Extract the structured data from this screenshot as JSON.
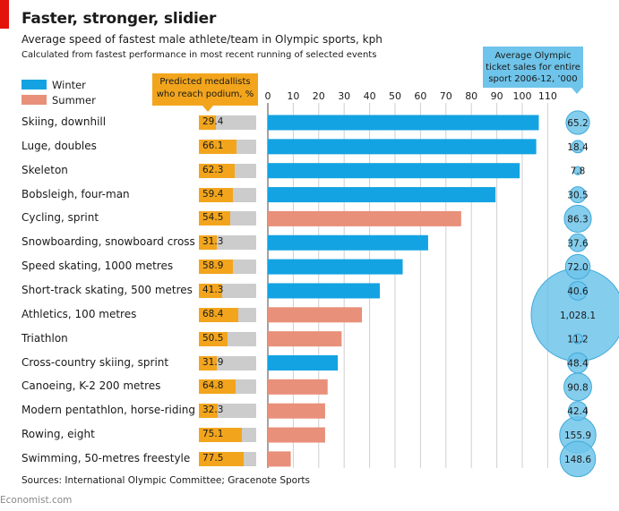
{
  "title": "Faster, stronger, slidier",
  "subtitle": "Average speed of fastest male athlete/team in Olympic sports, kph",
  "subtitle2": "Calculated from fastest performance in most recent running of selected events",
  "legend": [
    {
      "label": "Winter",
      "color": "#13a3e2"
    },
    {
      "label": "Summer",
      "color": "#e8907a"
    }
  ],
  "predicted_header": "Predicted medallists who reach podium, %",
  "ticket_header": "Average Olympic ticket sales for entire sport 2006-12, ’000",
  "source": "Sources: International Olympic Committee; Gracenote Sports",
  "brand": "Economist.com",
  "colors": {
    "winter": "#13a3e2",
    "summer": "#e8907a",
    "predicted": "#f2a51c",
    "track": "#cccccc",
    "bubble": "#6ec4ea"
  },
  "chart_data": {
    "type": "bar",
    "orientation": "horizontal",
    "xlim": [
      0,
      110
    ],
    "xticks": [
      "0",
      "10",
      "20",
      "30",
      "40",
      "50",
      "60",
      "70",
      "80",
      "90",
      "100",
      "110"
    ],
    "categories": [
      "Skiing, downhill",
      "Luge, doubles",
      "Skeleton",
      "Bobsleigh, four-man",
      "Cycling, sprint",
      "Snowboarding, snowboard cross",
      "Speed skating, 1000 metres",
      "Short-track skating, 500 metres",
      "Athletics, 100 metres",
      "Triathlon",
      "Cross-country skiing, sprint",
      "Canoeing, K-2 200 metres",
      "Modern pentathlon, horse-riding",
      "Rowing, eight",
      "Swimming, 50-metres freestyle"
    ],
    "season": [
      "Winter",
      "Winter",
      "Winter",
      "Winter",
      "Summer",
      "Winter",
      "Winter",
      "Winter",
      "Summer",
      "Summer",
      "Winter",
      "Summer",
      "Summer",
      "Summer",
      "Summer"
    ],
    "speed_kph": [
      106.5,
      105.5,
      99,
      89.5,
      76,
      63,
      53,
      44,
      37,
      29,
      27.5,
      23.5,
      22.5,
      22.5,
      9
    ],
    "predicted_podium_pct": [
      "29.4",
      "66.1",
      "62.3",
      "59.4",
      "54.5",
      "31.3",
      "58.9",
      "41.3",
      "68.4",
      "50.5",
      "31.9",
      "64.8",
      "32.3",
      "75.1",
      "77.5"
    ],
    "ticket_sales_thousands": [
      "65.2",
      "18.4",
      "7.8",
      "30.5",
      "86.3",
      "37.6",
      "72.0",
      "40.6",
      "1,028.1",
      "11.2",
      "48.4",
      "90.8",
      "42.4",
      "155.9",
      "148.6"
    ]
  }
}
